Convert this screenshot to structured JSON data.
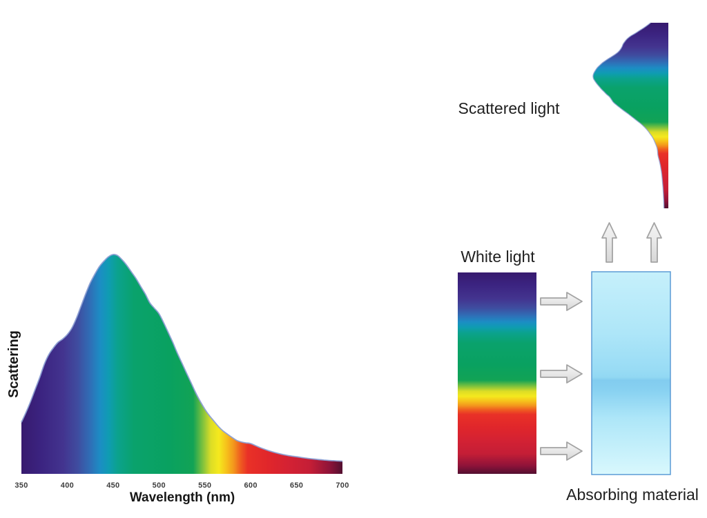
{
  "figure": {
    "left_chart": {
      "y_axis_label": "Scattering",
      "x_axis_label": "Wavelength (nm)",
      "x_ticks": [
        "350",
        "400",
        "450",
        "500",
        "550",
        "600",
        "650",
        "700"
      ]
    },
    "right_diagram": {
      "scattered_light_label": "Scattered light",
      "white_light_label": "White light",
      "absorbing_material_label": "Absorbing material"
    }
  },
  "icons": [
    "right-arrow-icon",
    "up-arrow-icon"
  ],
  "colors": {
    "text": "#1F1F1F",
    "curve_edge": "#8C9FD3",
    "absorbing_border": "#5B9BD5",
    "arrow_stroke": "#A3A3A3",
    "spectrum_gradient": [
      [
        0.0,
        "#371A6E"
      ],
      [
        0.06,
        "#3B2380"
      ],
      [
        0.13,
        "#43348F"
      ],
      [
        0.175,
        "#3F4C9F"
      ],
      [
        0.215,
        "#2F6FB7"
      ],
      [
        0.245,
        "#1C8DC4"
      ],
      [
        0.272,
        "#0F9CB2"
      ],
      [
        0.3,
        "#0BA28D"
      ],
      [
        0.35,
        "#0AA26C"
      ],
      [
        0.46,
        "#09A160"
      ],
      [
        0.535,
        "#12A355"
      ],
      [
        0.565,
        "#7FC23D"
      ],
      [
        0.59,
        "#DCDD26"
      ],
      [
        0.615,
        "#F5E91E"
      ],
      [
        0.64,
        "#F6BF1B"
      ],
      [
        0.662,
        "#F3941D"
      ],
      [
        0.682,
        "#EF5D20"
      ],
      [
        0.705,
        "#E93127"
      ],
      [
        0.77,
        "#E0262B"
      ],
      [
        0.84,
        "#D22134"
      ],
      [
        0.9,
        "#C41E36"
      ],
      [
        0.96,
        "#8E1339"
      ],
      [
        1.0,
        "#520F30"
      ]
    ],
    "absorbing_gradient": [
      [
        0.0,
        "#C6F0FB"
      ],
      [
        0.3,
        "#AEE6F8"
      ],
      [
        0.48,
        "#99DCF5"
      ],
      [
        0.52,
        "#92D8F3"
      ],
      [
        0.535,
        "#82CCEF"
      ],
      [
        0.585,
        "#88D1F1"
      ],
      [
        0.72,
        "#ADE6F8"
      ],
      [
        1.0,
        "#D9F8FD"
      ]
    ],
    "arrow_gradient": [
      [
        0.0,
        "#F4F4F4"
      ],
      [
        0.45,
        "#E9E9E9"
      ],
      [
        1.0,
        "#D6D6D6"
      ]
    ]
  },
  "chart_data": {
    "type": "area",
    "title": "",
    "xlabel": "Wavelength (nm)",
    "ylabel": "Scattering",
    "xlim": [
      350,
      700
    ],
    "x_ticks": [
      350,
      400,
      450,
      500,
      550,
      600,
      650,
      700
    ],
    "y_axis_note": "no tick labels; relative scattering intensity, peak normalized to 1.0 near 450 nm",
    "fill_note": "area under curve filled with visible-spectrum gradient keyed to wavelength; same curve reproduced vertically as the 'Scattered light' shape on the right",
    "x": [
      350,
      355,
      360,
      365,
      370,
      375,
      380,
      385,
      390,
      395,
      400,
      405,
      410,
      415,
      420,
      425,
      430,
      435,
      440,
      445,
      450,
      455,
      460,
      465,
      470,
      475,
      480,
      485,
      490,
      495,
      500,
      505,
      510,
      515,
      520,
      525,
      530,
      535,
      540,
      545,
      550,
      555,
      560,
      565,
      570,
      575,
      580,
      585,
      590,
      595,
      600,
      610,
      620,
      630,
      640,
      650,
      660,
      670,
      680,
      690,
      700
    ],
    "y": [
      0.235,
      0.28,
      0.33,
      0.385,
      0.44,
      0.5,
      0.545,
      0.575,
      0.6,
      0.615,
      0.635,
      0.665,
      0.71,
      0.765,
      0.82,
      0.87,
      0.91,
      0.945,
      0.97,
      0.99,
      1.0,
      0.995,
      0.975,
      0.95,
      0.92,
      0.89,
      0.855,
      0.82,
      0.78,
      0.755,
      0.73,
      0.69,
      0.645,
      0.6,
      0.55,
      0.505,
      0.46,
      0.415,
      0.37,
      0.33,
      0.295,
      0.265,
      0.24,
      0.215,
      0.195,
      0.18,
      0.165,
      0.152,
      0.145,
      0.141,
      0.138,
      0.12,
      0.105,
      0.093,
      0.084,
      0.078,
      0.072,
      0.067,
      0.063,
      0.06,
      0.058
    ]
  }
}
